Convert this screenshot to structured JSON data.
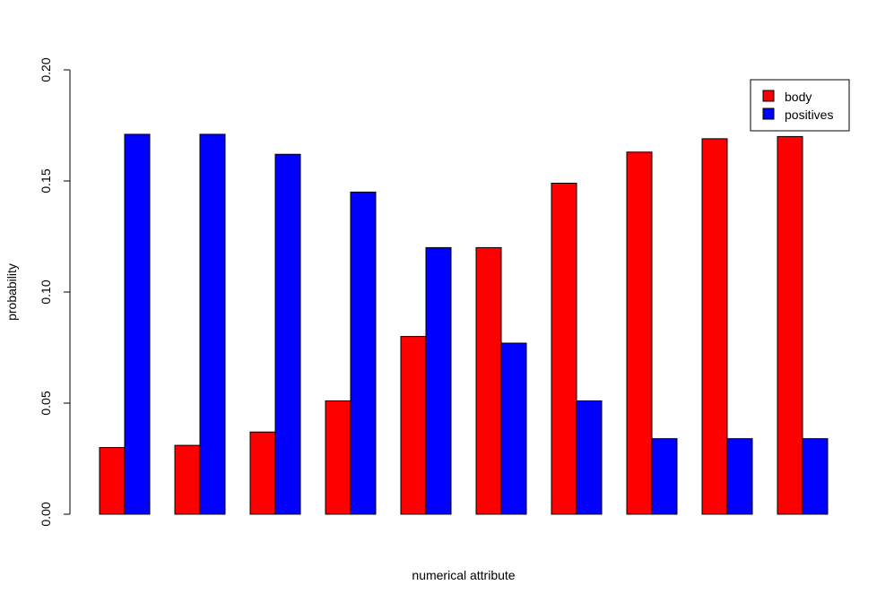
{
  "chart_data": {
    "type": "bar",
    "xlabel": "numerical attribute",
    "ylabel": "probability",
    "ylim": [
      0,
      0.2
    ],
    "yticks": [
      "0.00",
      "0.05",
      "0.10",
      "0.15",
      "0.20"
    ],
    "legend_position": "top-right",
    "series": [
      {
        "name": "body",
        "color": "#ff0000",
        "values": [
          0.03,
          0.031,
          0.037,
          0.051,
          0.08,
          0.12,
          0.149,
          0.163,
          0.169,
          0.17
        ]
      },
      {
        "name": "positives",
        "color": "#0000ff",
        "values": [
          0.171,
          0.171,
          0.162,
          0.145,
          0.12,
          0.077,
          0.051,
          0.034,
          0.034,
          0.034
        ]
      }
    ]
  }
}
